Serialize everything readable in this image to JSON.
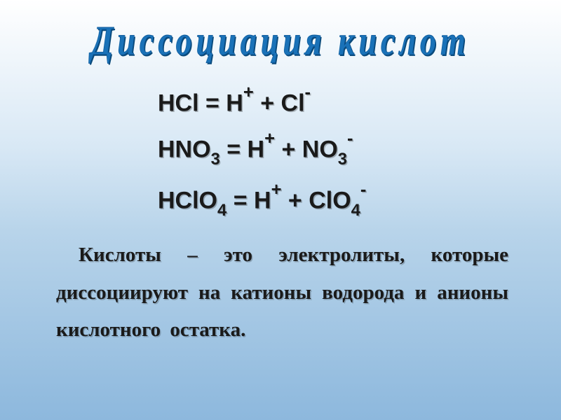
{
  "title": {
    "text": "Диссоциация   кислот",
    "fontsize": 46,
    "color": "#1a72b8",
    "outline_color": "#0a5090"
  },
  "equations": {
    "fontsize": 34,
    "color": "#1a1a1a",
    "items": [
      {
        "parts": [
          {
            "t": "HCl = H",
            "type": "main"
          },
          {
            "t": "+",
            "type": "sup"
          },
          {
            "t": " + Cl",
            "type": "main"
          },
          {
            "t": "-",
            "type": "sup"
          }
        ]
      },
      {
        "parts": [
          {
            "t": "HNO",
            "type": "main"
          },
          {
            "t": "3",
            "type": "sub"
          },
          {
            "t": " = H",
            "type": "main"
          },
          {
            "t": "+",
            "type": "sup"
          },
          {
            "t": " + NO",
            "type": "main"
          },
          {
            "t": "3",
            "type": "sub"
          },
          {
            "t": "-",
            "type": "sup"
          }
        ]
      },
      {
        "parts": [
          {
            "t": "HClO",
            "type": "main"
          },
          {
            "t": "4",
            "type": "sub"
          },
          {
            "t": " = H",
            "type": "main"
          },
          {
            "t": "+",
            "type": "sup"
          },
          {
            "t": " + ClO",
            "type": "main"
          },
          {
            "t": "4",
            "type": "sub"
          },
          {
            "t": "-",
            "type": "sup"
          }
        ]
      }
    ]
  },
  "definition": {
    "text": "Кислоты – это электролиты, которые диссоциируют на катионы водорода и анионы кислотного остатка.",
    "fontsize": 29,
    "color": "#1a1a1a"
  },
  "background": {
    "gradient_top": "#ffffff",
    "gradient_mid1": "#d8e8f5",
    "gradient_mid2": "#b8d4ea",
    "gradient_bottom": "#8db8dd"
  }
}
